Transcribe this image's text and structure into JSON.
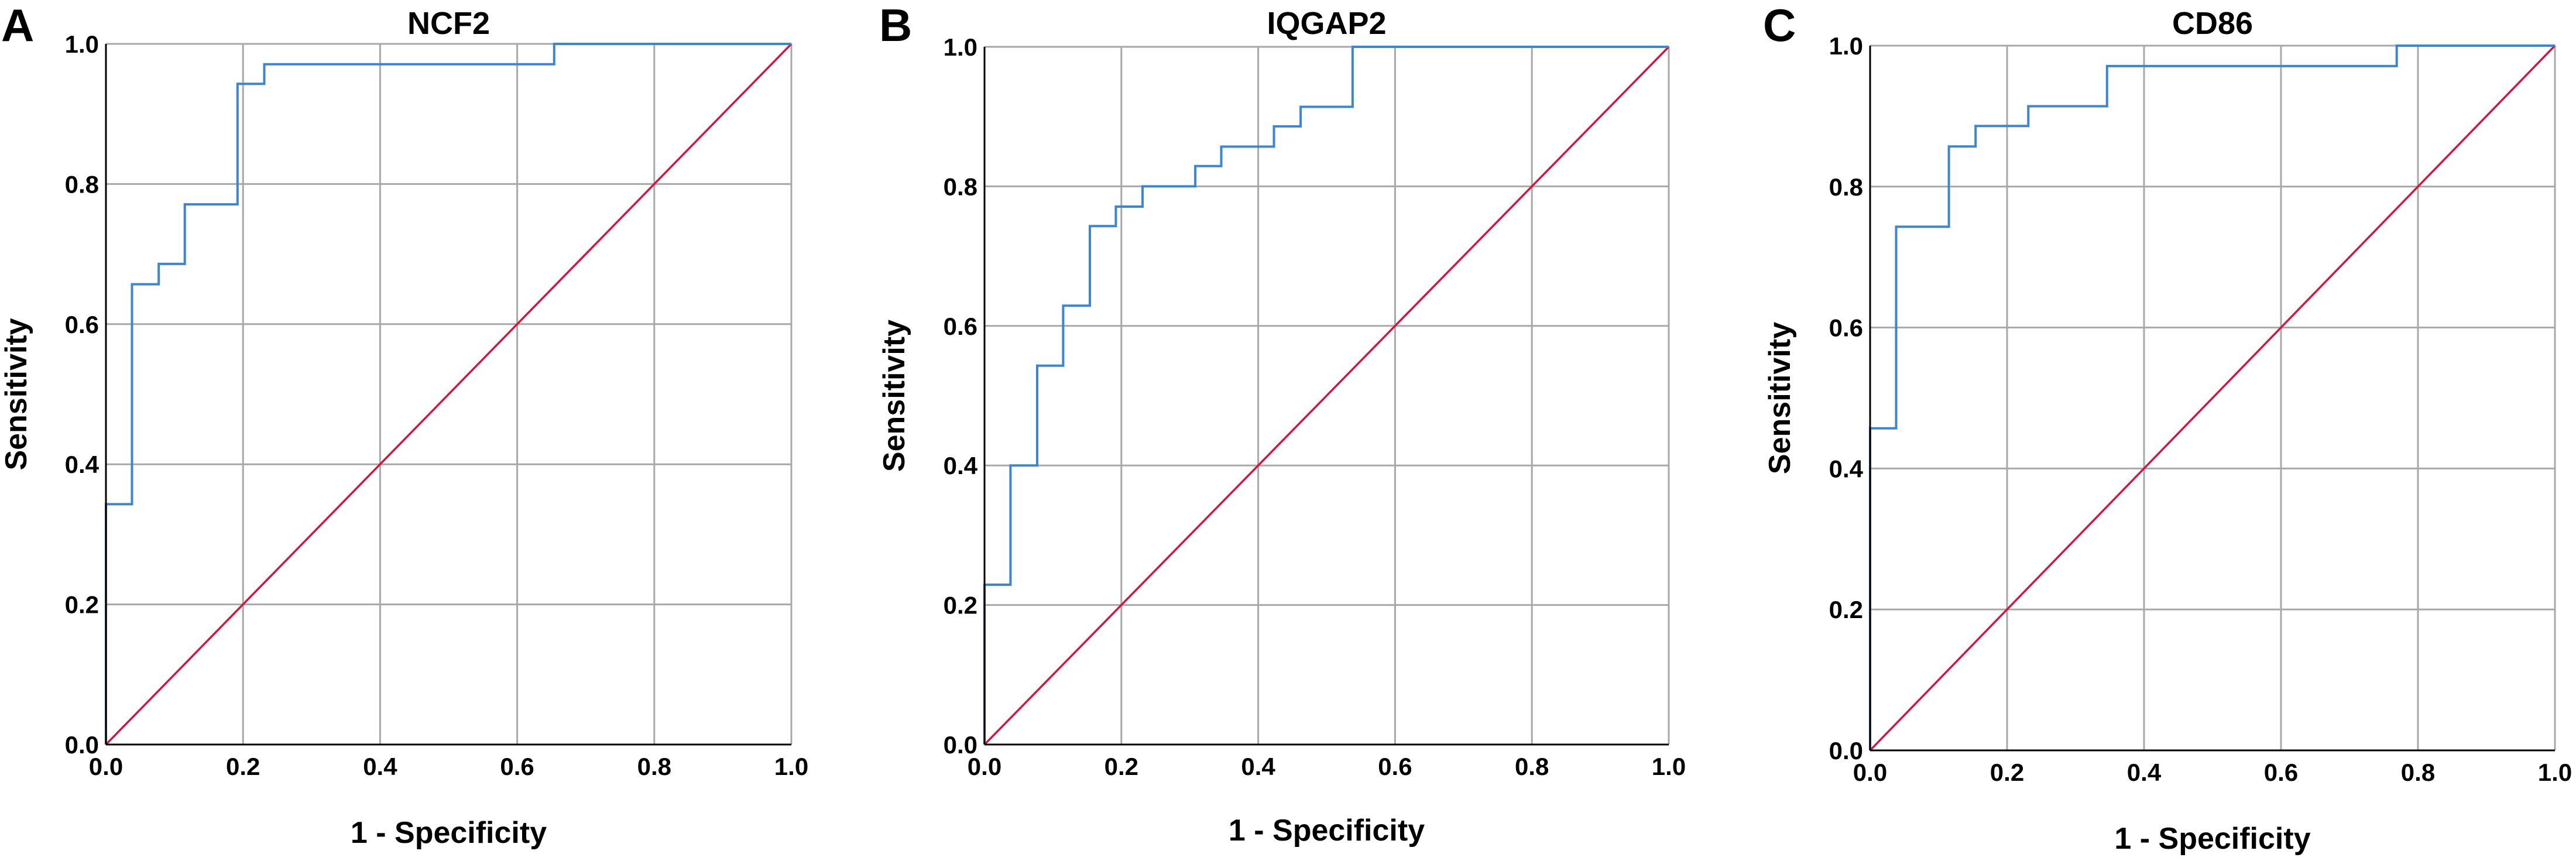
{
  "figure": {
    "panels": [
      "A",
      "B",
      "C"
    ]
  },
  "colors": {
    "roc_curve": "#3a86d4",
    "reference_line": "#d8143c",
    "grid": "#a8a8a8",
    "axis": "#000000"
  },
  "chart_data": [
    {
      "panel": "A",
      "type": "line",
      "title": "NCF2",
      "xlabel": "1 - Specificity",
      "ylabel": "Sensitivity",
      "xlim": [
        0,
        1
      ],
      "ylim": [
        0,
        1
      ],
      "xticks": [
        "0.0",
        "0.2",
        "0.4",
        "0.6",
        "0.8",
        "1.0"
      ],
      "yticks": [
        "0.0",
        "0.2",
        "0.4",
        "0.6",
        "0.8",
        "1.0"
      ],
      "grid": true,
      "series": [
        {
          "name": "ROC curve",
          "color": "#3a86d4",
          "x": [
            0,
            0,
            0.038,
            0.038,
            0.077,
            0.077,
            0.115,
            0.115,
            0.192,
            0.192,
            0.231,
            0.231,
            0.654,
            0.654,
            1.0
          ],
          "y": [
            0,
            0.343,
            0.343,
            0.657,
            0.657,
            0.686,
            0.686,
            0.771,
            0.771,
            0.943,
            0.943,
            0.971,
            0.971,
            1.0,
            1.0
          ]
        },
        {
          "name": "Reference line",
          "color": "#d8143c",
          "x": [
            0,
            1
          ],
          "y": [
            0,
            1
          ]
        }
      ]
    },
    {
      "panel": "B",
      "type": "line",
      "title": "IQGAP2",
      "xlabel": "1 - Specificity",
      "ylabel": "Sensitivity",
      "xlim": [
        0,
        1
      ],
      "ylim": [
        0,
        1
      ],
      "xticks": [
        "0.0",
        "0.2",
        "0.4",
        "0.6",
        "0.8",
        "1.0"
      ],
      "yticks": [
        "0.0",
        "0.2",
        "0.4",
        "0.6",
        "0.8",
        "1.0"
      ],
      "grid": true,
      "series": [
        {
          "name": "ROC curve",
          "color": "#3a86d4",
          "x": [
            0,
            0,
            0.038,
            0.038,
            0.077,
            0.077,
            0.115,
            0.115,
            0.154,
            0.154,
            0.192,
            0.192,
            0.231,
            0.231,
            0.308,
            0.308,
            0.346,
            0.346,
            0.423,
            0.423,
            0.462,
            0.462,
            0.538,
            0.538,
            1.0
          ],
          "y": [
            0,
            0.229,
            0.229,
            0.4,
            0.4,
            0.543,
            0.543,
            0.629,
            0.629,
            0.743,
            0.743,
            0.771,
            0.771,
            0.8,
            0.8,
            0.829,
            0.829,
            0.857,
            0.857,
            0.886,
            0.886,
            0.914,
            0.914,
            1.0,
            1.0
          ]
        },
        {
          "name": "Reference line",
          "color": "#d8143c",
          "x": [
            0,
            1
          ],
          "y": [
            0,
            1
          ]
        }
      ]
    },
    {
      "panel": "C",
      "type": "line",
      "title": "CD86",
      "xlabel": "1 - Specificity",
      "ylabel": "Sensitivity",
      "xlim": [
        0,
        1
      ],
      "ylim": [
        0,
        1
      ],
      "xticks": [
        "0.0",
        "0.2",
        "0.4",
        "0.6",
        "0.8",
        "1.0"
      ],
      "yticks": [
        "0.0",
        "0.2",
        "0.4",
        "0.6",
        "0.8",
        "1.0"
      ],
      "grid": true,
      "series": [
        {
          "name": "ROC curve",
          "color": "#3a86d4",
          "x": [
            0,
            0,
            0.038,
            0.038,
            0.115,
            0.115,
            0.154,
            0.154,
            0.231,
            0.231,
            0.346,
            0.346,
            0.769,
            0.769,
            1.0
          ],
          "y": [
            0,
            0.457,
            0.457,
            0.743,
            0.743,
            0.857,
            0.857,
            0.886,
            0.886,
            0.914,
            0.914,
            0.971,
            0.971,
            1.0,
            1.0
          ]
        },
        {
          "name": "Reference line",
          "color": "#d8143c",
          "x": [
            0,
            1
          ],
          "y": [
            0,
            1
          ]
        }
      ]
    }
  ]
}
